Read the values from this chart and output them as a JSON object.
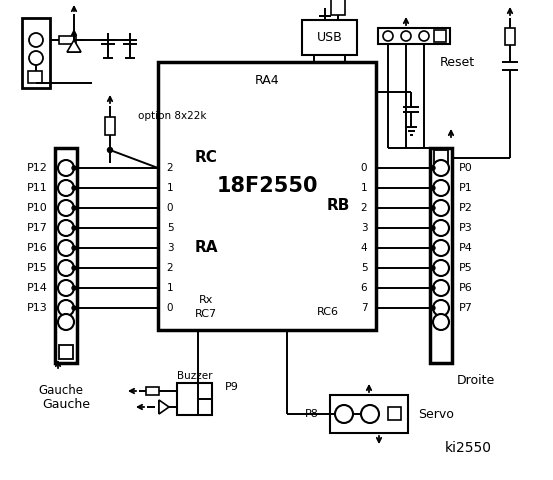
{
  "bg_color": "#ffffff",
  "line_color": "#000000",
  "title": "ki2550",
  "chip_label": "18F2550",
  "chip_sub": "RA4",
  "rc_label": "RC",
  "ra_label": "RA",
  "rb_label": "RB",
  "left_pins": [
    "P12",
    "P11",
    "P10",
    "P17",
    "P16",
    "P15",
    "P14",
    "P13"
  ],
  "right_pins": [
    "P0",
    "P1",
    "P2",
    "P3",
    "P4",
    "P5",
    "P6",
    "P7"
  ],
  "rc_nums": [
    "2",
    "1",
    "0",
    "5",
    "3",
    "2",
    "1",
    "0"
  ],
  "rb_nums": [
    "0",
    "1",
    "2",
    "3",
    "4",
    "5",
    "6",
    "7"
  ],
  "option_label": "option 8x22k",
  "gauche_label": "Gauche",
  "droite_label": "Droite",
  "buzzer_label": "Buzzer",
  "servo_label": "Servo",
  "reset_label": "Reset",
  "usb_label": "USB",
  "p8_label": "P8",
  "p9_label": "P9",
  "rx_label": "Rx",
  "rc7_label": "RC7",
  "rc6_label": "RC6"
}
